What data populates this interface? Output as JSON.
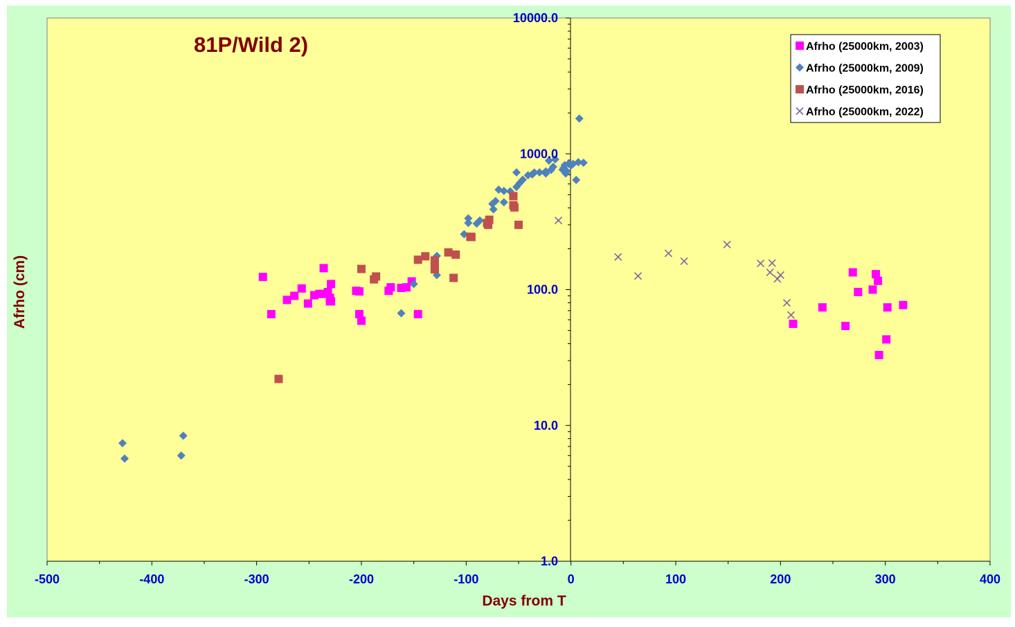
{
  "colors": {
    "outer_background": "#CCFFCC",
    "plot_background": "#FFFF99",
    "title": "#800000",
    "axis_title": "#800000",
    "tick_label": "#0000CC",
    "axis_line": "#000000"
  },
  "chart_data": {
    "type": "scatter",
    "title": "81P/Wild 2)",
    "xlabel": "Days from T",
    "ylabel": "Afrho (cm)",
    "xlim": [
      -500,
      400
    ],
    "ylim": [
      1,
      10000
    ],
    "y_scale": "log",
    "grid": false,
    "legend_position": "top-right",
    "x_ticks": [
      -500,
      -400,
      -300,
      -200,
      -100,
      0,
      100,
      200,
      300,
      400
    ],
    "x_tick_labels": [
      "-500",
      "-400",
      "-300",
      "-200",
      "-100",
      "0",
      "100",
      "200",
      "300",
      "400"
    ],
    "y_ticks": [
      1,
      10,
      100,
      1000,
      10000
    ],
    "y_tick_labels": [
      "1.0",
      "10.0",
      "100.0",
      "1000.0",
      "10000.0"
    ],
    "series": [
      {
        "name": "Afrho (25000km, 2003)",
        "marker": "square",
        "color": "#FF00FF",
        "x": [
          -294,
          -286,
          -271,
          -264,
          -257,
          -251,
          -245,
          -240,
          -236,
          -235,
          -232,
          -230,
          -230,
          -229,
          -229,
          -205,
          -202,
          -202,
          -200,
          -174,
          -172,
          -162,
          -157,
          -152,
          -146,
          212,
          240,
          262,
          269,
          274,
          288,
          291,
          293,
          294,
          301,
          302,
          317
        ],
        "y": [
          124,
          66,
          84,
          90,
          102,
          79,
          91,
          93,
          144,
          93,
          96,
          82,
          87,
          110,
          82,
          98,
          97,
          66,
          59,
          98,
          104,
          103,
          104,
          115,
          66,
          56,
          74,
          54,
          134,
          96,
          100,
          130,
          116,
          33,
          43,
          74,
          77
        ]
      },
      {
        "name": "Afrho (25000km, 2009)",
        "marker": "diamond",
        "color": "#4F81BD",
        "x": [
          -428,
          -426,
          -372,
          -370,
          -162,
          -150,
          -128,
          -128,
          -102,
          -98,
          -98,
          -90,
          -87,
          -75,
          -74,
          -72,
          -69,
          -64,
          -64,
          -58,
          -52,
          -52,
          -49,
          -46,
          -41,
          -37,
          -35,
          -30,
          -24,
          -24,
          -21,
          -19,
          -17,
          -15,
          -8,
          -7,
          -6,
          -5,
          -4,
          -2,
          0,
          2,
          5,
          7,
          8,
          12
        ],
        "y": [
          7.4,
          5.7,
          6,
          8.4,
          67,
          110,
          128,
          177,
          256,
          310,
          335,
          306,
          323,
          428,
          390,
          449,
          545,
          440,
          533,
          530,
          570,
          730,
          608,
          645,
          695,
          705,
          728,
          730,
          717,
          742,
          890,
          761,
          802,
          910,
          763,
          787,
          825,
          716,
          745,
          850,
          822,
          843,
          642,
          868,
          1820,
          860
        ]
      },
      {
        "name": "Afrho (25000km, 2016)",
        "marker": "square",
        "color": "#C0504D",
        "x": [
          -279,
          -200,
          -188,
          -186,
          -146,
          -139,
          -130,
          -130,
          -130,
          -130,
          -117,
          -112,
          -110,
          -96,
          -95,
          -80,
          -79,
          -78,
          -55,
          -55,
          -54,
          -50
        ],
        "y": [
          22,
          142,
          119,
          125,
          166,
          176,
          152,
          164,
          141,
          144,
          188,
          122,
          181,
          245,
          244,
          309,
          300,
          327,
          488,
          418,
          403,
          300
        ]
      },
      {
        "name": "Afrho (25000km, 2022)",
        "marker": "x",
        "color": "#8064A2",
        "x": [
          -12,
          45,
          64,
          93,
          108,
          149,
          181,
          190,
          192,
          197,
          200,
          206,
          210
        ],
        "y": [
          323,
          174,
          126,
          185,
          162,
          215,
          156,
          134,
          157,
          120,
          128,
          80,
          65
        ]
      }
    ]
  }
}
